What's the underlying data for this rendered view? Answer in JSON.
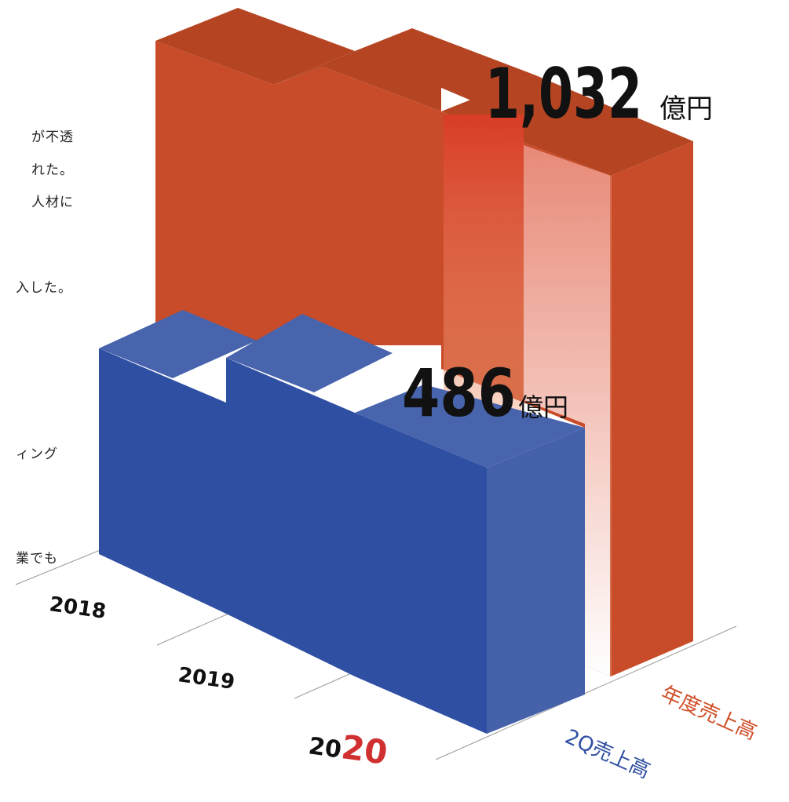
{
  "side_text": [
    "が不透",
    "れた。",
    "人材に",
    "入した。",
    "ィング",
    "業でも"
  ],
  "chart_data": {
    "type": "bar",
    "categories": [
      "2018",
      "2019",
      "2020"
    ],
    "highlight_digits": "20",
    "series": [
      {
        "name": "年度売上高",
        "values": [
          null,
          null,
          1032
        ],
        "color": "#c94c2a"
      },
      {
        "name": "2Q売上高",
        "values": [
          null,
          null,
          486
        ],
        "color": "#2f4fa2"
      }
    ],
    "annotations": [
      {
        "value_text": "1,032",
        "unit": "億円"
      },
      {
        "value_text": "486",
        "unit": "億円"
      }
    ],
    "accent_color": "#d0302f"
  }
}
